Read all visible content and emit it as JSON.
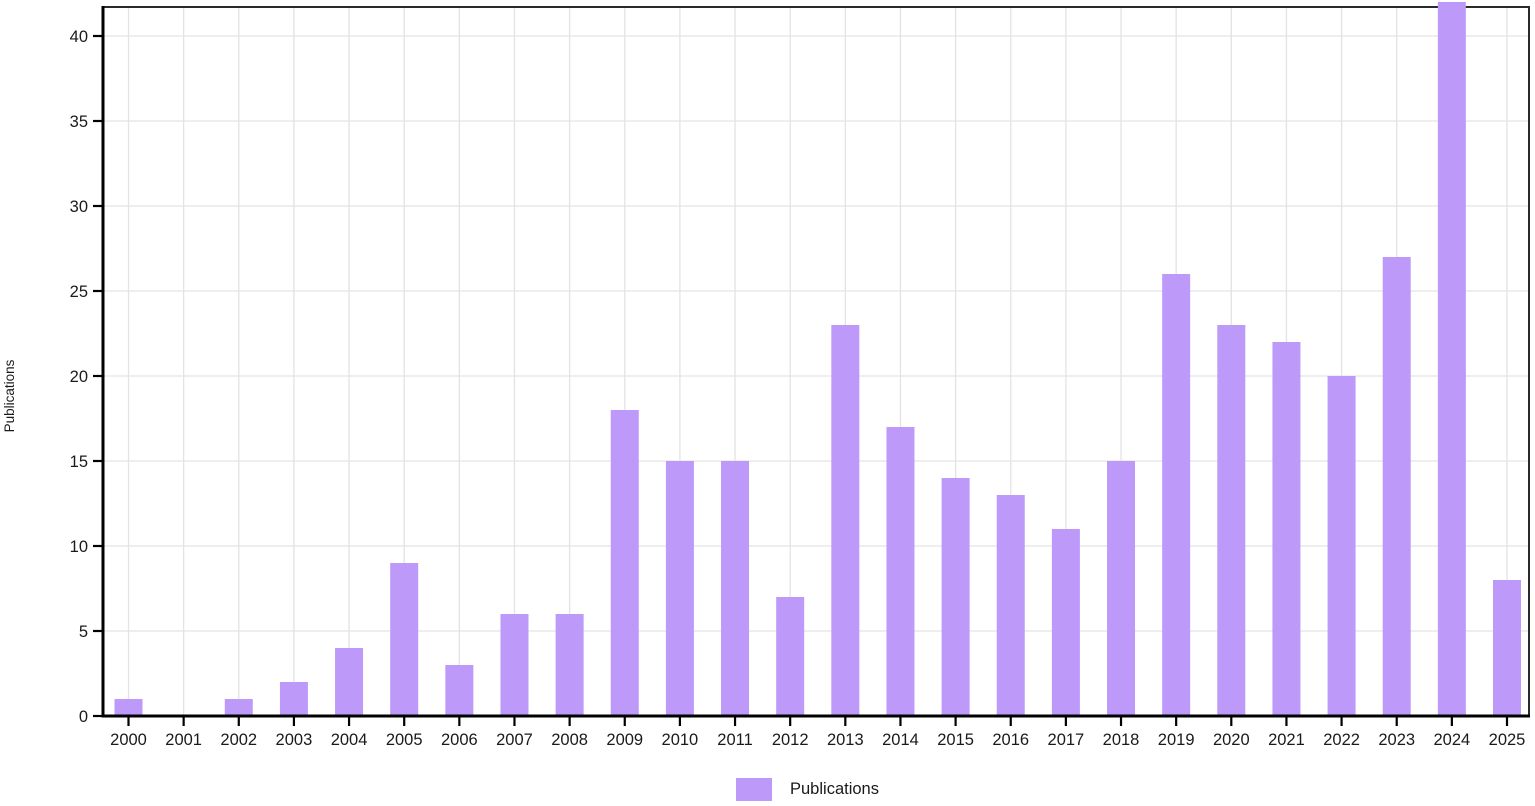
{
  "chart_data": {
    "type": "bar",
    "title": "",
    "xlabel": "",
    "ylabel": "Publications",
    "categories": [
      "2000",
      "2001",
      "2002",
      "2003",
      "2004",
      "2005",
      "2006",
      "2007",
      "2008",
      "2009",
      "2010",
      "2011",
      "2012",
      "2013",
      "2014",
      "2015",
      "2016",
      "2017",
      "2018",
      "2019",
      "2020",
      "2021",
      "2022",
      "2023",
      "2024",
      "2025"
    ],
    "values": [
      1,
      0,
      1,
      2,
      4,
      9,
      3,
      6,
      6,
      18,
      15,
      15,
      7,
      23,
      17,
      14,
      13,
      11,
      15,
      26,
      23,
      22,
      20,
      27,
      42,
      8
    ],
    "clipped_categories": [
      "2024"
    ],
    "ylim": [
      0,
      42
    ],
    "yticks": [
      0,
      5,
      10,
      15,
      20,
      25,
      30,
      35,
      40
    ],
    "grid": true,
    "legend_label": "Publications",
    "legend_position": "bottom-center",
    "colors": {
      "bar": "#bd9af9",
      "grid": "#e3e3e3",
      "axis": "#000000",
      "border": "#2a2a2a",
      "text": "#1a1a1a"
    }
  }
}
